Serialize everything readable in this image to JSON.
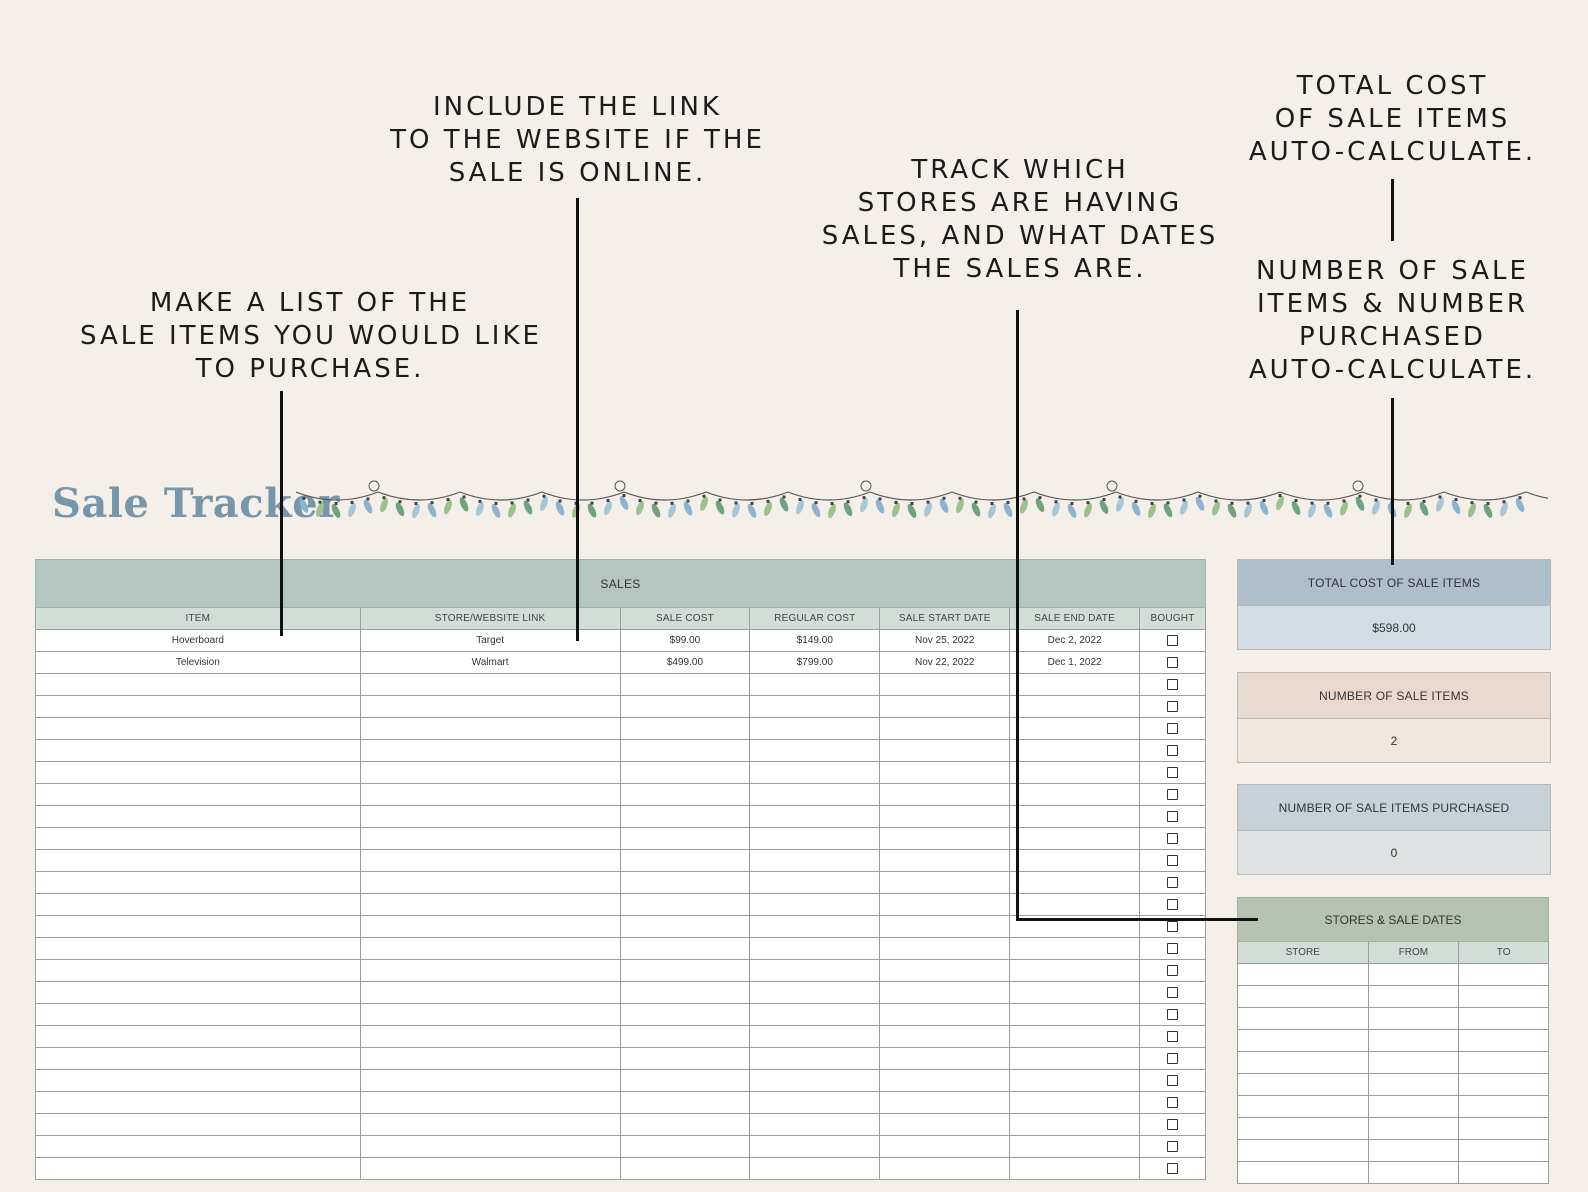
{
  "callouts": {
    "list_items": [
      "MAKE A LIST OF THE",
      "SALE ITEMS YOU WOULD LIKE",
      "TO PURCHASE."
    ],
    "include_link": [
      "INCLUDE THE LINK",
      "TO THE WEBSITE IF THE",
      "SALE IS ONLINE."
    ],
    "track_stores": [
      "TRACK WHICH",
      "STORES ARE HAVING",
      "SALES, AND WHAT DATES",
      "THE SALES ARE."
    ],
    "total_cost": [
      "TOTAL COST",
      "OF SALE ITEMS",
      "AUTO-CALCULATE."
    ],
    "number_items": [
      "NUMBER OF SALE",
      "ITEMS & NUMBER",
      "PURCHASED",
      "AUTO-CALCULATE."
    ]
  },
  "title": "Sale Tracker",
  "sales_table": {
    "heading": "SALES",
    "columns": [
      "ITEM",
      "STORE/WEBSITE LINK",
      "SALE COST",
      "REGULAR COST",
      "SALE START DATE",
      "SALE END DATE",
      "BOUGHT"
    ],
    "rows": [
      [
        "Hoverboard",
        "Target",
        "$99.00",
        "$149.00",
        "Nov 25, 2022",
        "Dec 2, 2022",
        false
      ],
      [
        "Television",
        "Walmart",
        "$499.00",
        "$799.00",
        "Nov 22, 2022",
        "Dec 1, 2022",
        false
      ]
    ],
    "empty_rows": 23
  },
  "summary": {
    "total_cost_label": "TOTAL COST OF SALE ITEMS",
    "total_cost_value": "$598.00",
    "number_items_label": "NUMBER OF SALE ITEMS",
    "number_items_value": "2",
    "number_purchased_label": "NUMBER OF SALE ITEMS PURCHASED",
    "number_purchased_value": "0",
    "total_color": "#adbfcb",
    "total_value_color": "#d2dde3",
    "items_color": "#e8d9cc",
    "items_value_color": "#f1e6dc",
    "purchased_color": "#c7d2d8",
    "purchased_value_color": "#dfe2e2"
  },
  "stores_table": {
    "heading": "STORES & SALE DATES",
    "columns": [
      "STORE",
      "FROM",
      "TO"
    ],
    "empty_rows": 10
  },
  "garland_colors": [
    "#8db3cf",
    "#9cc18f",
    "#6fa37e",
    "#a7c7d9"
  ]
}
